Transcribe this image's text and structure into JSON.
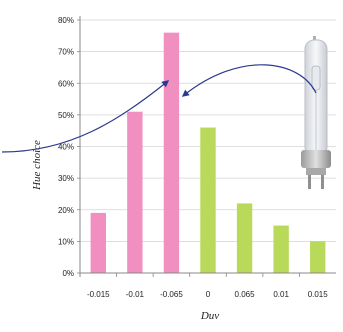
{
  "chart_data": {
    "type": "bar",
    "categories": [
      "-0.015",
      "-0.01",
      "-0.065",
      "0",
      "0.065",
      "0.01",
      "0.015"
    ],
    "values": [
      19,
      51,
      76,
      46,
      22,
      15,
      10
    ],
    "bar_colors": [
      "#f08fc0",
      "#f08fc0",
      "#f08fc0",
      "#b8d95a",
      "#b8d95a",
      "#b8d95a",
      "#b8d95a"
    ],
    "xlabel": "Duv",
    "ylabel": "Hue choice",
    "ylim": [
      0,
      80
    ],
    "y_ticks": [
      0,
      10,
      20,
      30,
      40,
      50,
      60,
      70,
      80
    ],
    "y_tick_labels": [
      "0%",
      "10%",
      "20%",
      "30%",
      "40%",
      "50%",
      "60%",
      "70%",
      "80%"
    ],
    "grid": true
  },
  "decorations": {
    "arrow_color": "#2b3a8c",
    "lamp_icon": "metal-halide-lamp-icon"
  }
}
